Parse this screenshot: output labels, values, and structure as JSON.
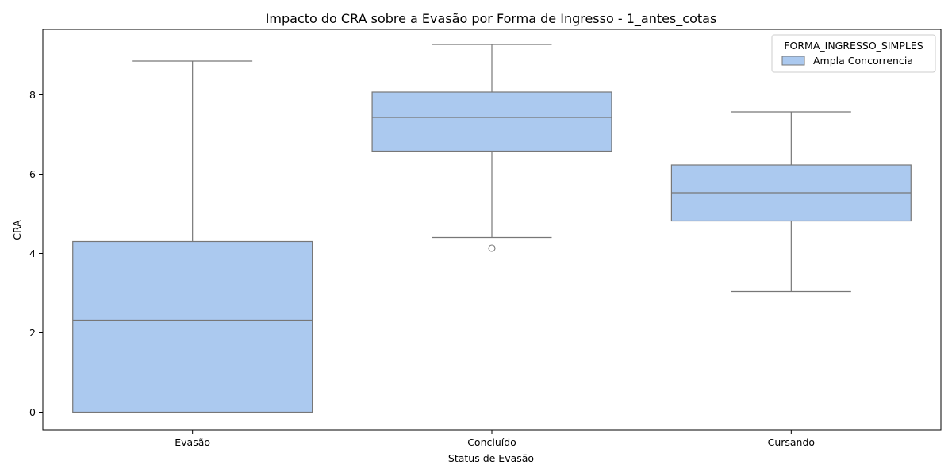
{
  "chart_data": {
    "type": "box",
    "title": "Impacto do CRA sobre a Evasão por Forma de Ingresso - 1_antes_cotas",
    "xlabel": "Status de Evasão",
    "ylabel": "CRA",
    "ylim": [
      -0.45,
      9.65
    ],
    "yticks": [
      0,
      2,
      4,
      6,
      8
    ],
    "grid": false,
    "legend_position": "top-right",
    "legend": {
      "title": "FORMA_INGRESSO_SIMPLES",
      "entries": [
        "Ampla Concorrencia"
      ]
    },
    "categories": [
      "Evasão",
      "Concluído",
      "Cursando"
    ],
    "series": [
      {
        "name": "Ampla Concorrencia",
        "color": "#abc9ef",
        "line_color": "#777777",
        "boxes": [
          {
            "category": "Evasão",
            "whisker_low": 0.0,
            "q1": 0.0,
            "median": 2.32,
            "q3": 4.3,
            "whisker_high": 8.85,
            "outliers": []
          },
          {
            "category": "Concluído",
            "whisker_low": 4.4,
            "q1": 6.58,
            "median": 7.43,
            "q3": 8.07,
            "whisker_high": 9.27,
            "outliers": [
              4.13
            ]
          },
          {
            "category": "Cursando",
            "whisker_low": 3.04,
            "q1": 4.82,
            "median": 5.53,
            "q3": 6.23,
            "whisker_high": 7.57,
            "outliers": []
          }
        ]
      }
    ]
  }
}
